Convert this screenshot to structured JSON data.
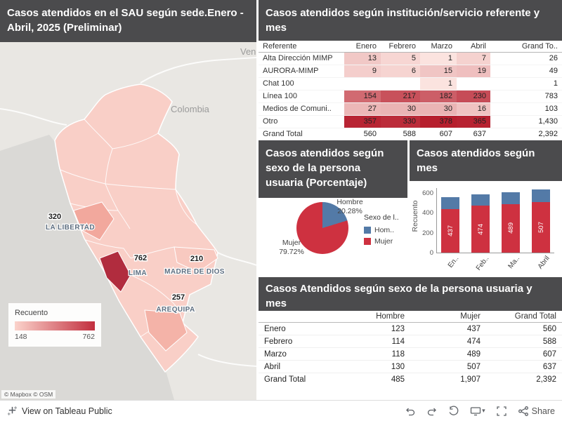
{
  "colors": {
    "header_bg": "#4b4b4d",
    "red": "#ce3140",
    "blue": "#537aa7",
    "heat_low": "#ffeee9",
    "heat_high": "#b61e2d",
    "legend_low": "#fbd3cb",
    "legend_high": "#c22e3e"
  },
  "map_panel": {
    "title": "Casos atendidos en el SAU según sede.Enero - Abril, 2025 (Preliminar)",
    "country_labels": {
      "colombia": "Colombia",
      "venezuela": "Vene"
    },
    "callouts": [
      {
        "value": "320",
        "region": "LA LIBERTAD"
      },
      {
        "value": "762",
        "region": "LIMA"
      },
      {
        "value": "210",
        "region": "MADRE DE DIOS"
      },
      {
        "value": "257",
        "region": "AREQUIPA"
      }
    ],
    "legend": {
      "title": "Recuento",
      "min": "148",
      "max": "762"
    },
    "attribution": "© Mapbox  © OSM"
  },
  "referente_panel": {
    "title": "Casos atendidos según institución/servicio referente y mes",
    "columns": [
      "Referente",
      "Enero",
      "Febrero",
      "Marzo",
      "Abril",
      "Grand To.."
    ],
    "rows": [
      {
        "label": "Alta Dirección MIMP",
        "values": [
          13,
          5,
          1,
          7
        ],
        "total": "26"
      },
      {
        "label": "AURORA-MIMP",
        "values": [
          9,
          6,
          15,
          19
        ],
        "total": "49"
      },
      {
        "label": "Chat 100",
        "values": [
          null,
          null,
          1,
          null
        ],
        "total": "1"
      },
      {
        "label": "Línea 100",
        "values": [
          154,
          217,
          182,
          230
        ],
        "total": "783"
      },
      {
        "label": "Medios de Comuni..",
        "values": [
          27,
          30,
          30,
          16
        ],
        "total": "103"
      },
      {
        "label": "Otro",
        "values": [
          357,
          330,
          378,
          365
        ],
        "total": "1,430"
      }
    ],
    "grand_total": {
      "label": "Grand Total",
      "values": [
        "560",
        "588",
        "607",
        "637"
      ],
      "total": "2,392"
    }
  },
  "pie_panel": {
    "title": "Casos atendidos según sexo de la persona usuaria (Porcentaje)",
    "hombre": {
      "label": "Hombre",
      "pct": "20.28%",
      "value": 20.28
    },
    "mujer": {
      "label": "Mujer",
      "pct": "79.72%",
      "value": 79.72
    },
    "legend": {
      "title": "Sexo de l..",
      "items": [
        {
          "label": "Hom..",
          "key": "blue"
        },
        {
          "label": "Mujer",
          "key": "red"
        }
      ]
    }
  },
  "bars_panel": {
    "title": "Casos atendidos según mes",
    "ylabel": "Recuento",
    "yticks": [
      0,
      200,
      400,
      600
    ],
    "ymax": 650,
    "categories": [
      "En..",
      "Feb..",
      "Ma..",
      "Abril"
    ],
    "mujer_values": [
      437,
      474,
      489,
      507
    ],
    "hombre_values": [
      123,
      114,
      118,
      130
    ]
  },
  "sexo_panel": {
    "title": "Casos Atendidos según sexo de la persona usuaria y mes",
    "columns": [
      "",
      "Hombre",
      "Mujer",
      "Grand Total"
    ],
    "rows": [
      {
        "label": "Enero",
        "hombre": "123",
        "mujer": "437",
        "total": "560"
      },
      {
        "label": "Febrero",
        "hombre": "114",
        "mujer": "474",
        "total": "588"
      },
      {
        "label": "Marzo",
        "hombre": "118",
        "mujer": "489",
        "total": "607"
      },
      {
        "label": "Abril",
        "hombre": "130",
        "mujer": "507",
        "total": "637"
      },
      {
        "label": "Grand Total",
        "hombre": "485",
        "mujer": "1,907",
        "total": "2,392",
        "grand": true
      }
    ]
  },
  "footer": {
    "view_label": "View on Tableau Public",
    "share_label": "Share"
  },
  "chart_data": [
    {
      "type": "heatmap",
      "title": "Casos atendidos según institución/servicio referente y mes",
      "rows": [
        "Alta Dirección MIMP",
        "AURORA-MIMP",
        "Chat 100",
        "Línea 100",
        "Medios de Comuni..",
        "Otro",
        "Grand Total"
      ],
      "columns": [
        "Enero",
        "Febrero",
        "Marzo",
        "Abril",
        "Grand Total"
      ],
      "values": [
        [
          13,
          5,
          1,
          7,
          26
        ],
        [
          9,
          6,
          15,
          19,
          49
        ],
        [
          null,
          null,
          1,
          null,
          1
        ],
        [
          154,
          217,
          182,
          230,
          783
        ],
        [
          27,
          30,
          30,
          16,
          103
        ],
        [
          357,
          330,
          378,
          365,
          1430
        ],
        [
          560,
          588,
          607,
          637,
          2392
        ]
      ]
    },
    {
      "type": "pie",
      "title": "Casos atendidos según sexo de la persona usuaria (Porcentaje)",
      "labels": [
        "Hombre",
        "Mujer"
      ],
      "values": [
        20.28,
        79.72
      ],
      "legend_position": "right"
    },
    {
      "type": "bar",
      "stacked": true,
      "title": "Casos atendidos según mes",
      "categories": [
        "Enero",
        "Febrero",
        "Marzo",
        "Abril"
      ],
      "series": [
        {
          "name": "Mujer",
          "values": [
            437,
            474,
            489,
            507
          ]
        },
        {
          "name": "Hombre",
          "values": [
            123,
            114,
            118,
            130
          ]
        }
      ],
      "totals": [
        560,
        588,
        607,
        637
      ],
      "ylabel": "Recuento",
      "ylim": [
        0,
        650
      ],
      "grid": false
    },
    {
      "type": "table",
      "title": "Casos Atendidos según sexo de la persona usuaria y mes",
      "columns": [
        "",
        "Hombre",
        "Mujer",
        "Grand Total"
      ],
      "rows": [
        [
          "Enero",
          123,
          437,
          560
        ],
        [
          "Febrero",
          114,
          474,
          588
        ],
        [
          "Marzo",
          118,
          489,
          607
        ],
        [
          "Abril",
          130,
          507,
          637
        ],
        [
          "Grand Total",
          485,
          1907,
          2392
        ]
      ]
    },
    {
      "type": "choropleth-map",
      "title": "Casos atendidos en el SAU según sede. Enero - Abril, 2025 (Preliminar)",
      "labeled_regions": [
        {
          "name": "LA LIBERTAD",
          "value": 320
        },
        {
          "name": "LIMA",
          "value": 762
        },
        {
          "name": "MADRE DE DIOS",
          "value": 210
        },
        {
          "name": "AREQUIPA",
          "value": 257
        }
      ],
      "scale": {
        "label": "Recuento",
        "min": 148,
        "max": 762
      }
    }
  ]
}
